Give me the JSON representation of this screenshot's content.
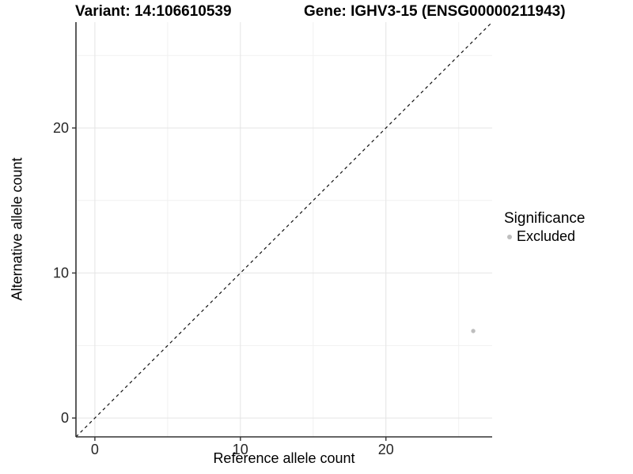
{
  "titles": {
    "variant": "Variant: 14:106610539",
    "gene": "Gene: IGHV3-15 (ENSG00000211943)"
  },
  "axis_titles": {
    "x": "Reference allele count",
    "y": "Alternative allele count"
  },
  "legend": {
    "title": "Significance",
    "entries": [
      {
        "label": "Excluded",
        "color": "#bebebe"
      }
    ]
  },
  "chart_data": {
    "type": "scatter",
    "title_left": "Variant: 14:106610539",
    "title_right": "Gene: IGHV3-15 (ENSG00000211943)",
    "xlabel": "Reference allele count",
    "ylabel": "Alternative allele count",
    "xlim": [
      -1.3,
      27.3
    ],
    "ylim": [
      -1.3,
      27.3
    ],
    "x_ticks": [
      0,
      10,
      20
    ],
    "y_ticks": [
      0,
      10,
      20
    ],
    "x_minor_breaks": [
      5,
      15,
      25
    ],
    "y_minor_breaks": [
      5,
      15,
      25
    ],
    "grid": "major+minor",
    "legend_position": "right",
    "series": [
      {
        "name": "Excluded",
        "color": "#bebebe",
        "points": [
          {
            "x": 26,
            "y": 6
          }
        ]
      }
    ],
    "reference_line": {
      "slope": 1,
      "intercept": 0,
      "style": "dashed",
      "color": "#111111"
    },
    "style": {
      "grid_major_color": "#e4e4e4",
      "grid_minor_color": "#f1f1f1",
      "axis_line_color": "#333333",
      "tick_text_color": "#262626",
      "tick_font_size": 18
    }
  }
}
